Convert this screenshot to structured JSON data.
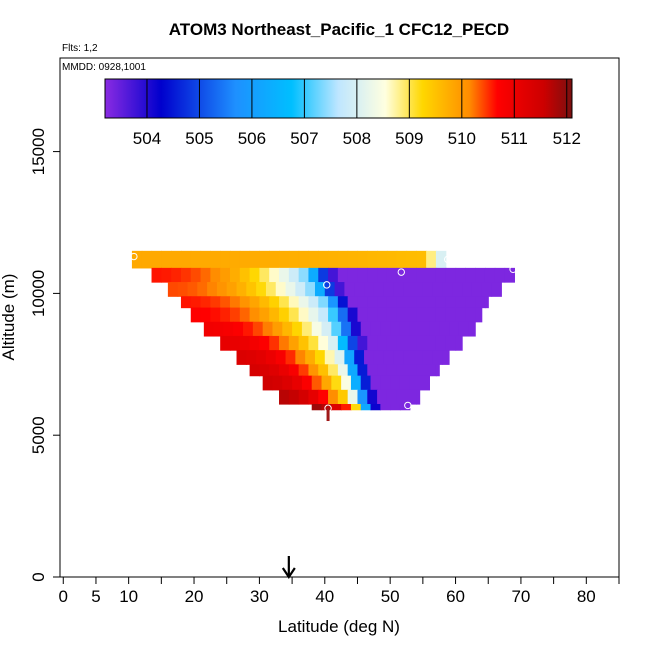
{
  "chart_data": {
    "type": "heatmap",
    "title": "ATOM3 Northeast_Pacific_1 CFC12_PECD",
    "flights_note": "Flts: 1,2",
    "dates_note": "MMDD: 0928,1001",
    "xlabel": "Latitude (deg N)",
    "ylabel": "Altitude (m)",
    "xlim": [
      -0.5,
      85
    ],
    "ylim": [
      0,
      18300
    ],
    "x_ticks": [
      0,
      5,
      10,
      20,
      30,
      40,
      50,
      60,
      70,
      80
    ],
    "x_minor_ticks": [
      15,
      25,
      35,
      45,
      55,
      65,
      75,
      85
    ],
    "y_ticks": [
      0,
      5000,
      10000,
      15000
    ],
    "colorbar": {
      "min": 503.2,
      "max": 512.1,
      "ticks": [
        504,
        505,
        506,
        507,
        508,
        509,
        510,
        511,
        512
      ],
      "colors": [
        "#8a2be2",
        "#0000cd",
        "#1e90ff",
        "#00bfff",
        "#bfe6ff",
        "#ffffe0",
        "#ffd700",
        "#ff8c00",
        "#ff0000",
        "#cc0000",
        "#7a1010"
      ],
      "stops": [
        0,
        0.12,
        0.28,
        0.4,
        0.5,
        0.6,
        0.68,
        0.78,
        0.84,
        0.94,
        1
      ]
    },
    "curtain": {
      "rows": [
        {
          "alt_bottom": 10900,
          "alt_top": 11500,
          "lat_start": 10.5,
          "lat_end": 58.5,
          "boundary": 59,
          "left_value": 509.8,
          "right_value": 507.0
        },
        {
          "alt_bottom": 10400,
          "alt_top": 10900,
          "lat_start": 13.5,
          "lat_end": 69,
          "boundary": 41.5,
          "left_value": 510.6,
          "right_value": 503.3
        },
        {
          "alt_bottom": 9900,
          "alt_top": 10400,
          "lat_start": 16,
          "lat_end": 67,
          "boundary": 42.5,
          "left_value": 510.4,
          "right_value": 503.3
        },
        {
          "alt_bottom": 9500,
          "alt_top": 9900,
          "lat_start": 18,
          "lat_end": 65,
          "boundary": 44,
          "left_value": 510.6,
          "right_value": 503.3
        },
        {
          "alt_bottom": 9000,
          "alt_top": 9500,
          "lat_start": 19.5,
          "lat_end": 64,
          "boundary": 45,
          "left_value": 510.7,
          "right_value": 503.3
        },
        {
          "alt_bottom": 8500,
          "alt_top": 9000,
          "lat_start": 21.5,
          "lat_end": 63,
          "boundary": 45.5,
          "left_value": 510.9,
          "right_value": 503.3
        },
        {
          "alt_bottom": 8000,
          "alt_top": 8500,
          "lat_start": 24,
          "lat_end": 61,
          "boundary": 46,
          "left_value": 511.1,
          "right_value": 503.3
        },
        {
          "alt_bottom": 7500,
          "alt_top": 8000,
          "lat_start": 26.5,
          "lat_end": 59,
          "boundary": 46.5,
          "left_value": 511.3,
          "right_value": 503.3
        },
        {
          "alt_bottom": 7100,
          "alt_top": 7500,
          "lat_start": 28.5,
          "lat_end": 57.5,
          "boundary": 47,
          "left_value": 511.4,
          "right_value": 503.3
        },
        {
          "alt_bottom": 6600,
          "alt_top": 7100,
          "lat_start": 30.5,
          "lat_end": 56,
          "boundary": 47.5,
          "left_value": 511.5,
          "right_value": 503.3
        },
        {
          "alt_bottom": 6100,
          "alt_top": 6600,
          "lat_start": 33,
          "lat_end": 54.5,
          "boundary": 48,
          "left_value": 511.7,
          "right_value": 503.3
        },
        {
          "alt_bottom": 5900,
          "alt_top": 6100,
          "lat_start": 38,
          "lat_end": 53,
          "boundary": 48.5,
          "left_value": 511.9,
          "right_value": 503.3
        }
      ],
      "samples": [
        {
          "lat": 10.8,
          "alt": 11300,
          "value": 509.7
        },
        {
          "lat": 40.3,
          "alt": 10300,
          "value": 505.6
        },
        {
          "lat": 51.7,
          "alt": 10750,
          "value": 503.5
        },
        {
          "lat": 58.8,
          "alt": 11200,
          "value": 507.0
        },
        {
          "lat": 68.8,
          "alt": 10850,
          "value": 503.3
        },
        {
          "lat": 40.5,
          "alt": 5950,
          "value": 511.6
        },
        {
          "lat": 52.7,
          "alt": 6050,
          "value": 503.3
        }
      ],
      "bottom_marker": {
        "lat": 40.5,
        "alt_low": 5500,
        "alt_high": 5950
      }
    },
    "arrow_marker": {
      "lat": 34.5
    }
  }
}
